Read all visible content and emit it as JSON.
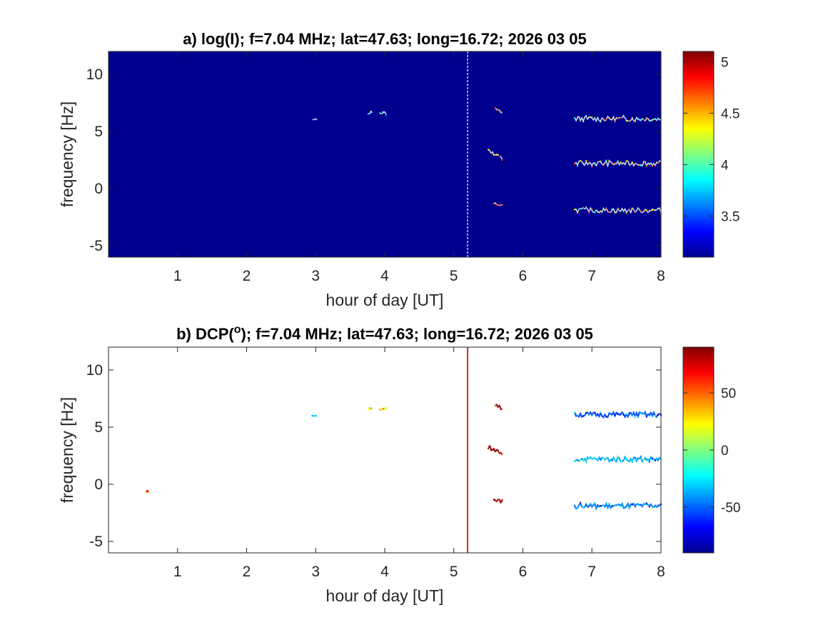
{
  "chart_data": [
    {
      "type": "heatmap",
      "panel": "a",
      "title": "a) log(I); f=7.04 MHz;  lat=47.63; long=16.72; 2026 03 05",
      "xlabel": "hour of day [UT]",
      "ylabel": "frequency [Hz]",
      "xlim": [
        0,
        8
      ],
      "ylim": [
        -6,
        12
      ],
      "xticks": [
        1,
        2,
        3,
        4,
        5,
        6,
        7,
        8
      ],
      "yticks": [
        -5,
        0,
        5,
        10
      ],
      "xtick_labels": [
        "1",
        "2",
        "3",
        "4",
        "5",
        "6",
        "7",
        "8"
      ],
      "ytick_labels": [
        "-5",
        "0",
        "5",
        "10"
      ],
      "background": "#00008f",
      "colorbar": {
        "colormap": "jet",
        "range": [
          3.1,
          5.1
        ],
        "ticks": [
          3.5,
          4,
          4.5,
          5
        ],
        "tick_labels": [
          "3.5",
          "4",
          "4.5",
          "5"
        ]
      },
      "vertical_line": {
        "x": 5.2,
        "y_range": [
          -6,
          12
        ]
      },
      "features": [
        {
          "x_range": [
            2.95,
            3.02
          ],
          "y": 6.0,
          "level": 0.3
        },
        {
          "x_range": [
            3.76,
            3.82
          ],
          "y": 6.6,
          "level": 0.5
        },
        {
          "x_range": [
            3.93,
            4.02
          ],
          "y": 6.6,
          "level": 0.5
        },
        {
          "x_range": [
            5.6,
            5.7
          ],
          "y_start": 7.0,
          "y_end": 6.6,
          "level": 0.8
        },
        {
          "x_range": [
            5.5,
            5.7
          ],
          "y_start": 3.3,
          "y_end": 2.7,
          "level": 0.8
        },
        {
          "x_range": [
            5.58,
            5.7
          ],
          "y_start": -1.3,
          "y_end": -1.5,
          "level": 0.8
        },
        {
          "x_range": [
            6.75,
            8.0
          ],
          "y": 6.1,
          "level": 0.6
        },
        {
          "x_range": [
            6.75,
            8.0
          ],
          "y": 2.2,
          "level": 0.6
        },
        {
          "x_range": [
            6.75,
            8.0
          ],
          "y": -1.9,
          "level": 0.6
        }
      ]
    },
    {
      "type": "heatmap",
      "panel": "b",
      "title_main": "b) DCP(",
      "title_sup": "o",
      "title_rest": "); f=7.04 MHz;  lat=47.63; long=16.72; 2026 03 05",
      "xlabel": "hour of day [UT]",
      "ylabel": "frequency [Hz]",
      "xlim": [
        0,
        8
      ],
      "ylim": [
        -6,
        12
      ],
      "xticks": [
        1,
        2,
        3,
        4,
        5,
        6,
        7,
        8
      ],
      "yticks": [
        -5,
        0,
        5,
        10
      ],
      "xtick_labels": [
        "1",
        "2",
        "3",
        "4",
        "5",
        "6",
        "7",
        "8"
      ],
      "ytick_labels": [
        "-5",
        "0",
        "5",
        "10"
      ],
      "background": "#ffffff",
      "colorbar": {
        "colormap": "jet",
        "range": [
          -90,
          90
        ],
        "ticks": [
          -50,
          0,
          50
        ],
        "tick_labels": [
          "-50",
          "0",
          "50"
        ]
      },
      "vertical_line": {
        "x": 5.2,
        "y_range": [
          -6,
          12
        ]
      },
      "features": [
        {
          "x_range": [
            0.55,
            0.58
          ],
          "y": -0.6,
          "level": 0.9
        },
        {
          "x_range": [
            2.95,
            3.02
          ],
          "y": 6.0,
          "level": 0.35
        },
        {
          "x_range": [
            3.76,
            3.82
          ],
          "y": 6.6,
          "level": 0.6
        },
        {
          "x_range": [
            3.93,
            4.02
          ],
          "y": 6.6,
          "level": 0.6
        },
        {
          "x_range": [
            5.6,
            5.7
          ],
          "y_start": 7.0,
          "y_end": 6.6,
          "level": 0.97
        },
        {
          "x_range": [
            5.5,
            5.7
          ],
          "y_start": 3.3,
          "y_end": 2.7,
          "level": 0.97
        },
        {
          "x_range": [
            5.58,
            5.7
          ],
          "y_start": -1.3,
          "y_end": -1.5,
          "level": 0.97
        },
        {
          "x_range": [
            6.75,
            8.0
          ],
          "y": 6.1,
          "level": 0.2
        },
        {
          "x_range": [
            6.75,
            8.0
          ],
          "y": 2.2,
          "level": 0.3
        },
        {
          "x_range": [
            6.75,
            8.0
          ],
          "y": -1.9,
          "level": 0.25
        }
      ]
    }
  ]
}
